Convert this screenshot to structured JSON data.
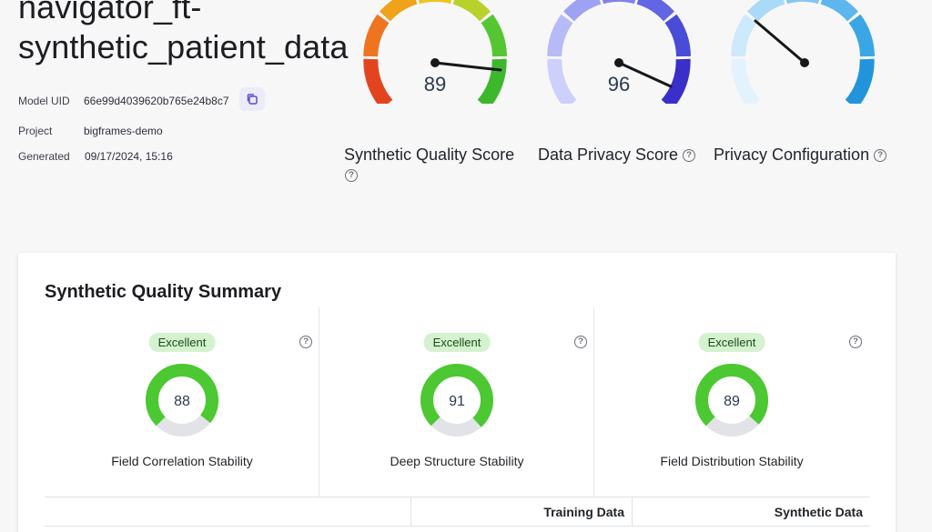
{
  "header": {
    "title": "navigator_ft-synthetic_patient_data",
    "meta": [
      {
        "key": "Model UID",
        "value": "66e99d4039620b765e24b8c7"
      },
      {
        "key": "Project",
        "value": "bigframes-demo"
      },
      {
        "key": "Generated",
        "value": "09/17/2024, 15:16"
      }
    ]
  },
  "gauges": [
    {
      "label": "Synthetic Quality Score",
      "value": "89",
      "has_help": true
    },
    {
      "label": "Data Privacy Score",
      "value": "96",
      "has_help": true
    },
    {
      "label": "Privacy Configuration",
      "value": "",
      "has_help": true
    }
  ],
  "summary": {
    "title": "Synthetic Quality Summary",
    "metrics": [
      {
        "badge": "Excellent",
        "value": "88",
        "label": "Field Correlation Stability",
        "fraction": 0.88
      },
      {
        "badge": "Excellent",
        "value": "91",
        "label": "Deep Structure Stability",
        "fraction": 0.91
      },
      {
        "badge": "Excellent",
        "value": "89",
        "label": "Field Distribution Stability",
        "fraction": 0.89
      }
    ],
    "table": {
      "columns": [
        "",
        "Training Data",
        "Synthetic Data"
      ]
    }
  },
  "colors": {
    "accent": "#5a4bd6",
    "good_green": "#4cc832",
    "badge_bg": "#d4f2cf"
  }
}
